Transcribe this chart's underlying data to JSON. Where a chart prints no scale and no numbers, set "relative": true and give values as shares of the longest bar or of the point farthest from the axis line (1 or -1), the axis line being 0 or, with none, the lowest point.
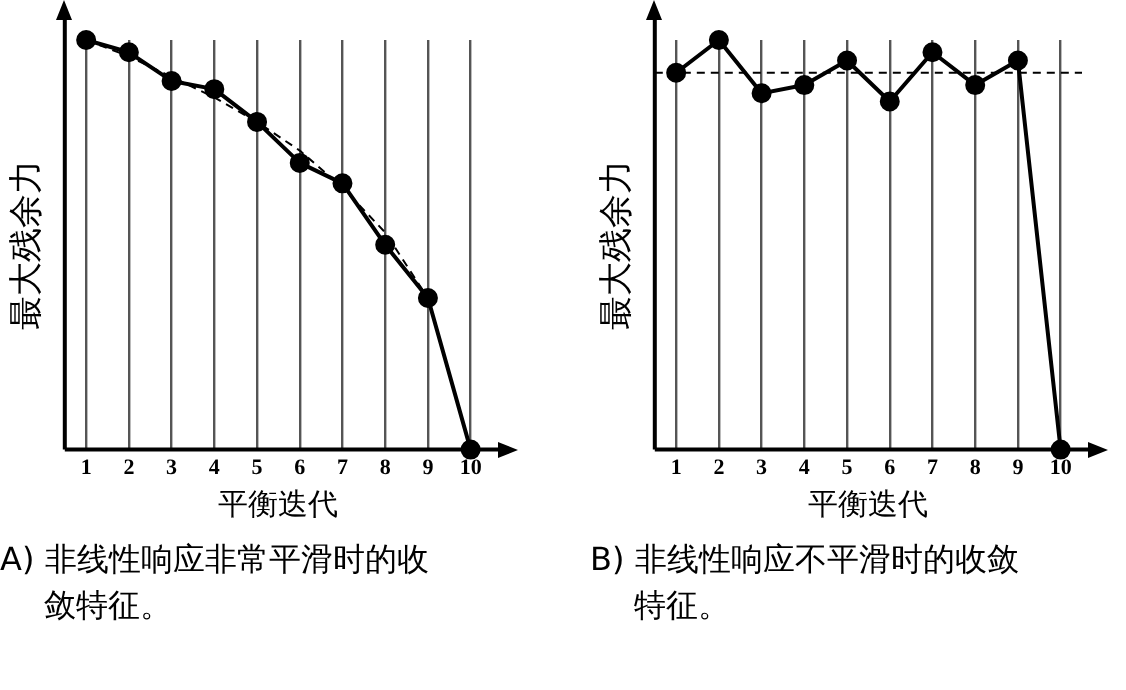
{
  "chart_data": [
    {
      "type": "line",
      "categories": [
        "1",
        "2",
        "3",
        "4",
        "5",
        "6",
        "7",
        "8",
        "9",
        "10"
      ],
      "relative": true,
      "xlabel": "平衡迭代",
      "ylabel": "最大残余力",
      "grid": "x",
      "marker": "circle",
      "line_style": "solid",
      "series": [
        {
          "color": "#000000",
          "values": [
            1.0,
            0.97,
            0.9,
            0.88,
            0.8,
            0.7,
            0.65,
            0.5,
            0.37,
            0
          ]
        },
        {
          "type": "line",
          "color": "#000000",
          "marker": "none",
          "line_style": "dashed",
          "values": [
            1.0,
            0.96,
            0.91,
            0.86,
            0.8,
            0.73,
            0.64,
            0.53,
            0.37,
            0
          ]
        }
      ],
      "annotations": [
        "A) 非线性响应非常平滑时的收敛特征。"
      ]
    },
    {
      "type": "line",
      "categories": [
        "1",
        "2",
        "3",
        "4",
        "5",
        "6",
        "7",
        "8",
        "9",
        "10"
      ],
      "relative": true,
      "xlabel": "平衡迭代",
      "ylabel": "最大残余力",
      "grid": "x",
      "marker": "circle",
      "line_style": "solid",
      "series": [
        {
          "color": "#000000",
          "values": [
            0.92,
            1.0,
            0.87,
            0.89,
            0.95,
            0.85,
            0.97,
            0.89,
            0.95,
            0
          ]
        }
      ],
      "ref_lines": [
        {
          "axis": "y",
          "value": 0.92,
          "line_style": "dashed",
          "color": "#000000"
        }
      ],
      "annotations": [
        "B) 非线性响应不平滑时的收敛特征。"
      ]
    }
  ]
}
